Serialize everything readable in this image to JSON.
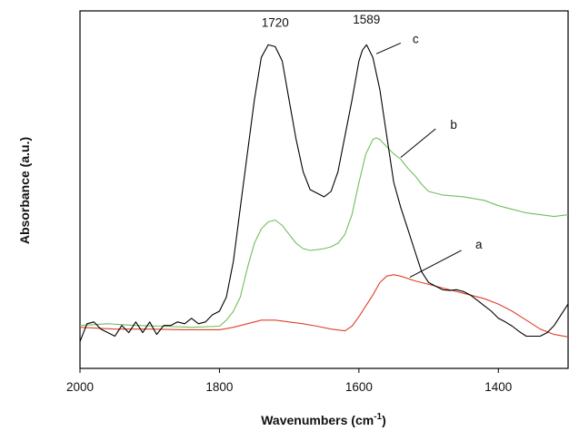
{
  "chart_data": {
    "type": "line",
    "title": "",
    "xlabel": "Wavenumbers (cm",
    "xlabel_sup": "-1",
    "xlabel_close": ")",
    "ylabel": "Absorbance (a.u.)",
    "xlim": [
      2000,
      1300
    ],
    "x_reversed": true,
    "ylim": [
      0,
      1
    ],
    "y_ticks_labeled": false,
    "grid": false,
    "legend": "none",
    "x_ticks": [
      {
        "value": 2000,
        "label": "2000"
      },
      {
        "value": 1800,
        "label": "1800"
      },
      {
        "value": 1600,
        "label": "1600"
      },
      {
        "value": 1400,
        "label": "1400"
      }
    ],
    "series": [
      {
        "name": "a",
        "color": "#e0402a",
        "x": [
          2000,
          1950,
          1900,
          1850,
          1800,
          1780,
          1760,
          1740,
          1720,
          1700,
          1680,
          1660,
          1640,
          1620,
          1610,
          1600,
          1590,
          1580,
          1570,
          1560,
          1550,
          1540,
          1520,
          1500,
          1480,
          1460,
          1440,
          1420,
          1400,
          1380,
          1360,
          1340,
          1320,
          1300
        ],
        "y": [
          0.115,
          0.11,
          0.11,
          0.108,
          0.108,
          0.115,
          0.125,
          0.135,
          0.135,
          0.13,
          0.125,
          0.118,
          0.11,
          0.105,
          0.118,
          0.145,
          0.175,
          0.205,
          0.24,
          0.258,
          0.262,
          0.258,
          0.245,
          0.235,
          0.225,
          0.215,
          0.205,
          0.195,
          0.18,
          0.16,
          0.135,
          0.11,
          0.095,
          0.088
        ]
      },
      {
        "name": "b",
        "color": "#74bd5e",
        "x": [
          2000,
          1960,
          1920,
          1880,
          1840,
          1800,
          1790,
          1780,
          1770,
          1760,
          1750,
          1740,
          1730,
          1720,
          1710,
          1700,
          1690,
          1680,
          1670,
          1660,
          1650,
          1640,
          1630,
          1620,
          1610,
          1600,
          1590,
          1580,
          1575,
          1570,
          1560,
          1550,
          1540,
          1530,
          1520,
          1510,
          1500,
          1480,
          1450,
          1420,
          1400,
          1380,
          1360,
          1340,
          1320,
          1300
        ],
        "y": [
          0.12,
          0.125,
          0.12,
          0.118,
          0.115,
          0.118,
          0.135,
          0.16,
          0.2,
          0.28,
          0.35,
          0.39,
          0.41,
          0.415,
          0.4,
          0.375,
          0.35,
          0.335,
          0.33,
          0.332,
          0.335,
          0.34,
          0.35,
          0.375,
          0.43,
          0.52,
          0.6,
          0.64,
          0.645,
          0.64,
          0.62,
          0.6,
          0.585,
          0.56,
          0.54,
          0.515,
          0.495,
          0.485,
          0.48,
          0.47,
          0.455,
          0.445,
          0.435,
          0.43,
          0.425,
          0.43
        ]
      },
      {
        "name": "c",
        "color": "#000000",
        "x": [
          2000,
          1990,
          1980,
          1970,
          1960,
          1950,
          1940,
          1930,
          1920,
          1910,
          1900,
          1890,
          1880,
          1870,
          1860,
          1850,
          1840,
          1830,
          1820,
          1810,
          1800,
          1790,
          1780,
          1770,
          1760,
          1750,
          1740,
          1730,
          1720,
          1710,
          1700,
          1690,
          1680,
          1670,
          1660,
          1650,
          1640,
          1630,
          1620,
          1610,
          1600,
          1595,
          1589,
          1580,
          1570,
          1560,
          1550,
          1540,
          1530,
          1520,
          1510,
          1500,
          1490,
          1480,
          1470,
          1460,
          1450,
          1440,
          1430,
          1420,
          1410,
          1400,
          1390,
          1380,
          1370,
          1360,
          1350,
          1340,
          1330,
          1320,
          1310,
          1300
        ],
        "y": [
          0.075,
          0.125,
          0.13,
          0.11,
          0.1,
          0.09,
          0.12,
          0.1,
          0.13,
          0.1,
          0.13,
          0.095,
          0.12,
          0.12,
          0.13,
          0.125,
          0.14,
          0.125,
          0.13,
          0.15,
          0.16,
          0.2,
          0.3,
          0.45,
          0.6,
          0.75,
          0.87,
          0.905,
          0.9,
          0.86,
          0.75,
          0.64,
          0.55,
          0.5,
          0.49,
          0.48,
          0.495,
          0.55,
          0.65,
          0.75,
          0.86,
          0.89,
          0.905,
          0.87,
          0.78,
          0.65,
          0.52,
          0.45,
          0.39,
          0.33,
          0.27,
          0.24,
          0.23,
          0.22,
          0.218,
          0.22,
          0.215,
          0.205,
          0.19,
          0.175,
          0.16,
          0.14,
          0.13,
          0.118,
          0.103,
          0.09,
          0.09,
          0.09,
          0.1,
          0.12,
          0.15,
          0.18
        ]
      }
    ],
    "annotations": [
      {
        "text": "1720",
        "x": 1720,
        "y": 0.955,
        "kind": "peak"
      },
      {
        "text": "1589",
        "x": 1589,
        "y": 0.965,
        "kind": "peak"
      },
      {
        "text": "c",
        "x": 1523,
        "y": 0.91,
        "kind": "series",
        "leader_from": [
          1575,
          0.88
        ],
        "leader_to": [
          1540,
          0.91
        ]
      },
      {
        "text": "b",
        "x": 1469,
        "y": 0.67,
        "kind": "series",
        "leader_from": [
          1540,
          0.59
        ],
        "leader_to": [
          1490,
          0.67
        ]
      },
      {
        "text": "a",
        "x": 1433,
        "y": 0.335,
        "kind": "series",
        "leader_from": [
          1527,
          0.255
        ],
        "leader_to": [
          1453,
          0.33
        ]
      }
    ]
  }
}
